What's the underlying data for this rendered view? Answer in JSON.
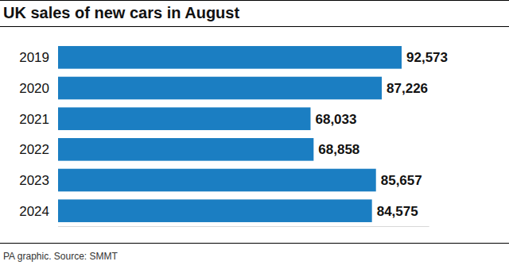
{
  "chart_data": {
    "type": "bar",
    "title": "UK sales of new cars in August",
    "source": "PA graphic. Source: SMMT",
    "orientation": "horizontal",
    "categories": [
      "2019",
      "2020",
      "2021",
      "2022",
      "2023",
      "2024"
    ],
    "values": [
      92573,
      87226,
      68033,
      68858,
      85657,
      84575
    ],
    "value_labels": [
      "92,573",
      "87,226",
      "68,033",
      "68,858",
      "85,657",
      "84,575"
    ],
    "color": "#1b7ec2",
    "xlim": [
      0,
      100000
    ],
    "data_labels": true,
    "tick_labels": "y",
    "grid": false
  }
}
